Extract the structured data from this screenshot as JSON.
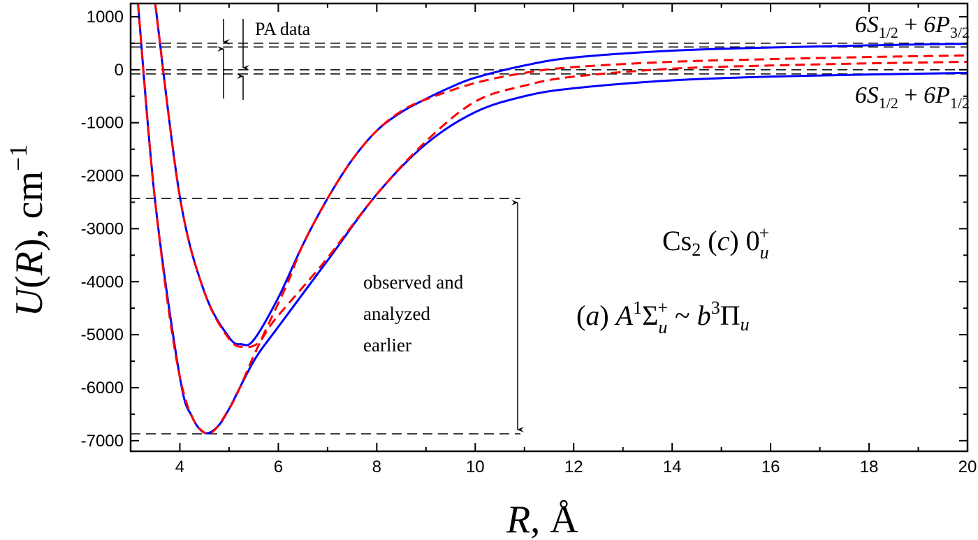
{
  "chart_data": {
    "type": "line",
    "xlabel": "R, Å",
    "ylabel": "U(R), cm−1",
    "xlim": [
      3,
      20
    ],
    "ylim": [
      -7200,
      1250
    ],
    "x_ticks": [
      4,
      6,
      8,
      10,
      12,
      14,
      16,
      18,
      20
    ],
    "y_ticks": [
      1000,
      0,
      -1000,
      -2000,
      -3000,
      -4000,
      -5000,
      -6000,
      -7000
    ],
    "grid": false,
    "colors": {
      "adiabatic": "#0000ff",
      "diabatic": "#ff0000",
      "reference": "#000000"
    },
    "series": [
      {
        "style": "solid-blue",
        "x": [
          3.5,
          4,
          4.5,
          5,
          5.25,
          5.5,
          6,
          6.5,
          7,
          7.5,
          8,
          8.5,
          9,
          9.5,
          10,
          11,
          12,
          14,
          16,
          18,
          20
        ],
        "y": [
          1250,
          -2400,
          -4200,
          -5050,
          -5180,
          -5100,
          -4300,
          -3300,
          -2430,
          -1700,
          -1150,
          -800,
          -550,
          -330,
          -150,
          80,
          230,
          360,
          420,
          460,
          490
        ]
      },
      {
        "style": "solid-blue",
        "x": [
          3.15,
          3.5,
          4,
          4.25,
          4.5,
          4.75,
          5,
          5.5,
          6,
          7,
          8,
          9,
          10,
          11,
          12,
          14,
          16,
          18,
          20
        ],
        "y": [
          1250,
          -2500,
          -5800,
          -6550,
          -6850,
          -6750,
          -6400,
          -5500,
          -4850,
          -3600,
          -2350,
          -1400,
          -800,
          -500,
          -350,
          -200,
          -130,
          -90,
          -60
        ]
      },
      {
        "style": "dashed-red",
        "x": [
          3.15,
          3.5,
          4,
          4.5,
          5,
          5.5,
          5.8,
          6.2,
          6.5,
          7,
          7.5,
          8,
          8.5,
          9,
          10,
          11,
          12,
          14,
          16,
          18,
          20
        ],
        "y": [
          1250,
          -2500,
          -5800,
          -6850,
          -6400,
          -5400,
          -4800,
          -4000,
          -3300,
          -2430,
          -1700,
          -1150,
          -780,
          -560,
          -250,
          -60,
          50,
          150,
          200,
          240,
          270
        ]
      },
      {
        "style": "dashed-red",
        "x": [
          3.5,
          4,
          4.5,
          5,
          5.3,
          5.6,
          5.9,
          6.5,
          7,
          8,
          9,
          10,
          11,
          12,
          14,
          16,
          18,
          20
        ],
        "y": [
          1250,
          -2400,
          -4200,
          -5080,
          -5230,
          -5150,
          -4750,
          -4100,
          -3550,
          -2350,
          -1350,
          -600,
          -300,
          -130,
          20,
          80,
          120,
          150
        ]
      }
    ],
    "reference_lines": [
      500,
      430,
      0,
      -80,
      -2430,
      -6870
    ],
    "annotations": {
      "pa_data": "PA data",
      "asymptote_upper": "6S1/2 + 6P3/2",
      "asymptote_lower": "6S1/2 + 6P1/2",
      "observed_1": "observed and",
      "observed_2": "analyzed",
      "observed_3": "earlier",
      "molecule": "Cs2 (c) 0u+",
      "states": "(a) A1Σu+ ~ b3Πu"
    }
  }
}
